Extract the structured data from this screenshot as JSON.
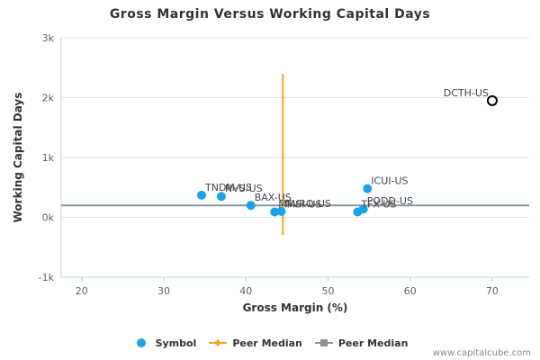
{
  "chart_data": {
    "type": "scatter",
    "title": "Gross Margin Versus Working Capital Days",
    "xlabel": "Gross Margin (%)",
    "ylabel": "Working Capital Days",
    "xlim": [
      17.5,
      74.5
    ],
    "ylim": [
      -1000,
      3000
    ],
    "x_ticks": [
      20,
      30,
      40,
      50,
      60,
      70
    ],
    "y_ticks": [
      {
        "value": -1000,
        "label": "-1k"
      },
      {
        "value": 0,
        "label": "0k"
      },
      {
        "value": 1000,
        "label": "1k"
      },
      {
        "value": 2000,
        "label": "2k"
      },
      {
        "value": 3000,
        "label": "3k"
      }
    ],
    "series": [
      {
        "name": "Symbol",
        "color": "#1aa3e8",
        "points": [
          {
            "label": "TNDM-US",
            "x": 34.6,
            "y": 370
          },
          {
            "label": "NVS-US",
            "x": 37.0,
            "y": 350
          },
          {
            "label": "BAX-US",
            "x": 40.6,
            "y": 200
          },
          {
            "label": "MMSI-US",
            "x": 43.5,
            "y": 90
          },
          {
            "label": "NVRO-US",
            "x": 44.3,
            "y": 100
          },
          {
            "label": "ICUI-US",
            "x": 54.8,
            "y": 480
          },
          {
            "label": "PODD-US",
            "x": 54.3,
            "y": 140
          },
          {
            "label": "TFX-US",
            "x": 53.6,
            "y": 90
          },
          {
            "label": "DCTH-US",
            "x": 70.0,
            "y": 1950,
            "highlight": true
          }
        ]
      }
    ],
    "peer_median_x": {
      "name": "Peer Median",
      "value": 44.5,
      "y_range": [
        -300,
        2400
      ],
      "color": "#f5a623"
    },
    "peer_median_y": {
      "name": "Peer Median",
      "value": 200,
      "color": "#8c959e"
    },
    "legend_position": "bottom-center"
  },
  "legend": {
    "symbol": "Symbol",
    "peer_median_1": "Peer Median",
    "peer_median_2": "Peer Median"
  },
  "credit": "www.capitalcube.com"
}
